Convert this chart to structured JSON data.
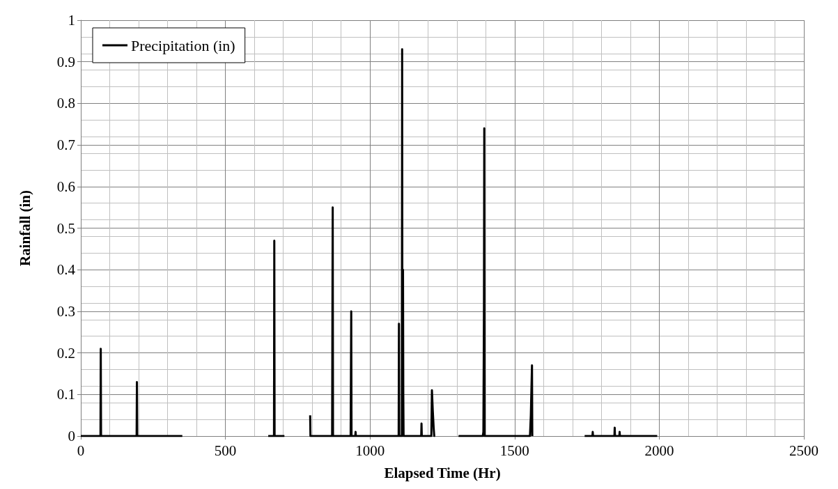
{
  "chart_data": {
    "type": "line",
    "xlabel": "Elapsed Time (Hr)",
    "ylabel": "Rainfall (in)",
    "x": [
      0,
      68,
      69,
      70,
      193,
      194,
      195,
      351,
      500,
      648,
      668,
      669,
      670,
      704,
      750,
      793,
      794,
      795,
      869,
      870,
      871,
      872,
      933,
      934,
      935,
      936,
      949,
      950,
      951,
      1099,
      1100,
      1101,
      1110,
      1111,
      1112,
      1114,
      1115,
      1116,
      1177,
      1178,
      1179,
      1212,
      1214,
      1217,
      1220,
      1222,
      1225,
      1260,
      1306,
      1390,
      1392,
      1394,
      1395,
      1396,
      1553,
      1556,
      1558,
      1560,
      1561,
      1650,
      1742,
      1769,
      1770,
      1771,
      1845,
      1846,
      1847,
      1862,
      1863,
      1864,
      1993
    ],
    "series": [
      {
        "name": "Precipitation (in)",
        "color": "#000000",
        "values": [
          0,
          0,
          0.21,
          0,
          0,
          0.13,
          0,
          0,
          null,
          0,
          0,
          0.47,
          0,
          0,
          null,
          0.05,
          0,
          0,
          0,
          0.3,
          0.55,
          0,
          0,
          0.15,
          0.3,
          0,
          0,
          0.01,
          0,
          0,
          0.27,
          0,
          0,
          0.93,
          0,
          0.4,
          0.1,
          0,
          0,
          0.03,
          0,
          0,
          0.11,
          0.06,
          0.02,
          0,
          0,
          null,
          0,
          0,
          0.01,
          0.32,
          0.74,
          0,
          0,
          0.05,
          0.11,
          0.17,
          0,
          null,
          0,
          0,
          0.01,
          0,
          0,
          0.02,
          0,
          0,
          0.01,
          0,
          0
        ]
      }
    ],
    "xlim": [
      0,
      2500
    ],
    "xticks": [
      0,
      500,
      1000,
      1500,
      2000,
      2500
    ],
    "ylim": [
      0,
      1
    ],
    "yticks": [
      0,
      0.1,
      0.2,
      0.3,
      0.4,
      0.5,
      0.6,
      0.7,
      0.8,
      0.9,
      1
    ],
    "grid": true,
    "legend": "top left",
    "marker": "none",
    "line_style": "solid"
  }
}
